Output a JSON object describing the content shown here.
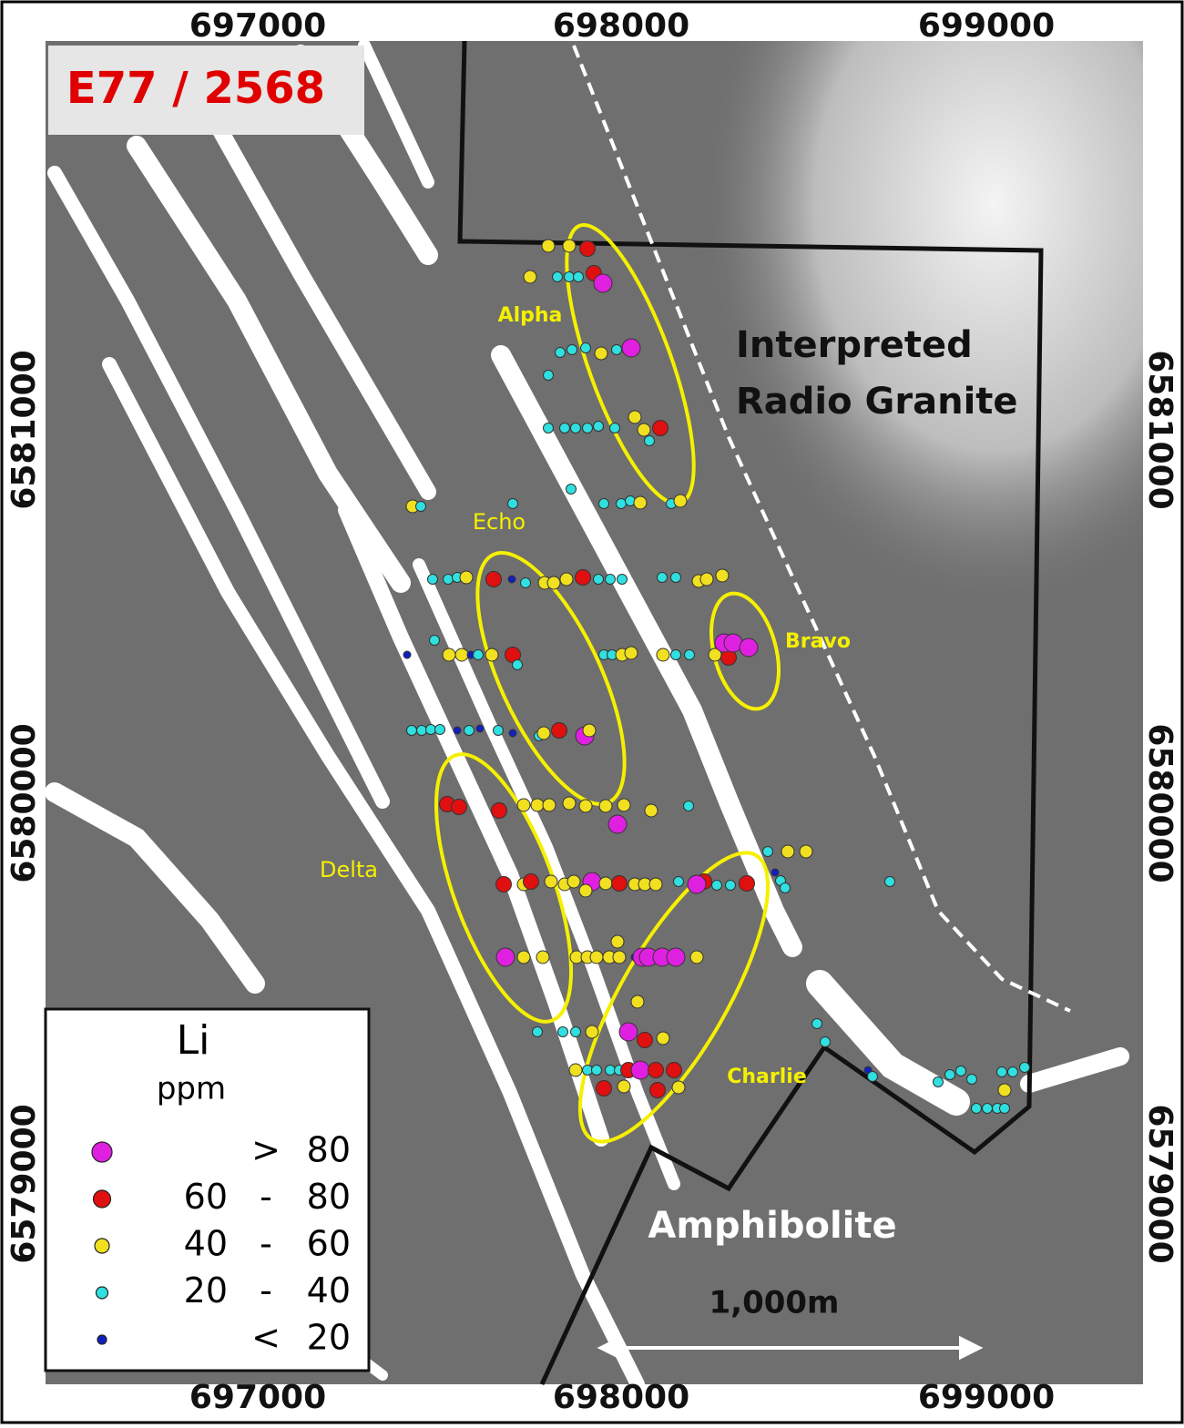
{
  "title": "E77 / 2568",
  "axes": {
    "top": [
      697000,
      698000,
      699000
    ],
    "bottom": [
      697000,
      698000,
      699000
    ],
    "left": [
      6581000,
      6580000,
      6579000
    ],
    "right": [
      6581000,
      6580000,
      6579000
    ]
  },
  "annotations": {
    "granite": [
      "Interpreted",
      "Radio Granite"
    ],
    "amphibolite": "Amphibolite",
    "scale": "1,000m"
  },
  "prospects": [
    "Alpha",
    "Echo",
    "Bravo",
    "Delta",
    "Charlie"
  ],
  "legend": {
    "title": "Li",
    "unit": "ppm",
    "items": [
      {
        "sep": ">",
        "to": "80",
        "color": "#e020e0"
      },
      {
        "from": "60",
        "sep": "-",
        "to": "80",
        "color": "#e01010"
      },
      {
        "from": "40",
        "sep": "-",
        "to": "60",
        "color": "#f0e020"
      },
      {
        "from": "20",
        "sep": "-",
        "to": "40",
        "color": "#30e0e0"
      },
      {
        "sep": "<",
        "to": "20",
        "color": "#1020c0"
      }
    ]
  }
}
